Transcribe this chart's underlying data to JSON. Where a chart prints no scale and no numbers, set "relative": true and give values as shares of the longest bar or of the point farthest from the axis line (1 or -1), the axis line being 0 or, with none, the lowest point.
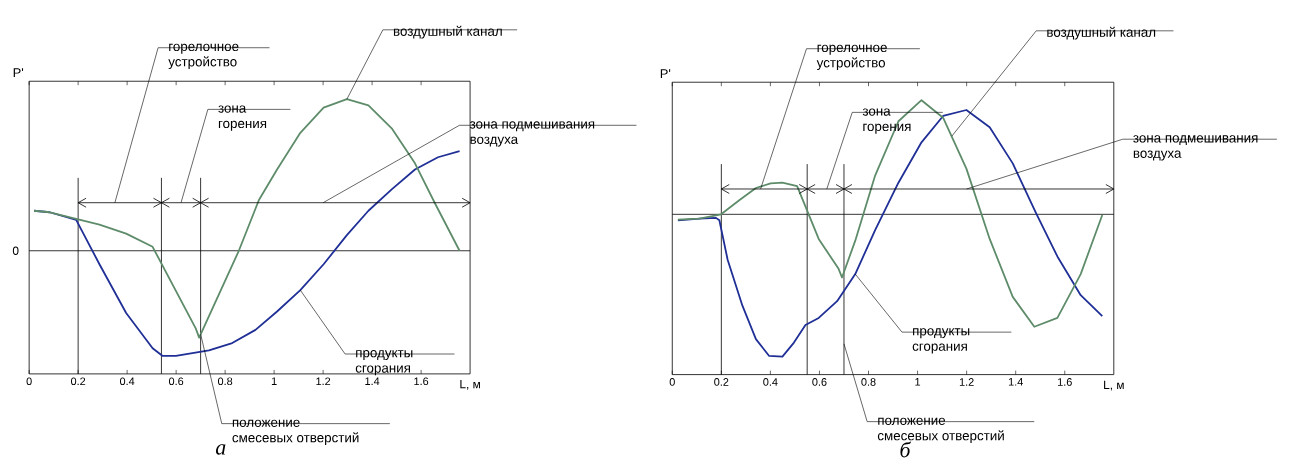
{
  "chart_data": [
    {
      "type": "line",
      "relative": true,
      "title": "а",
      "xlabel": "L, м",
      "ylabel": "P'",
      "xlim": [
        0,
        1.8
      ],
      "xticks": [
        0,
        0.2,
        0.4,
        0.6,
        0.8,
        1,
        1.2,
        1.4,
        1.6
      ],
      "series": [
        {
          "color": "#1f2f96",
          "x": [
            0.02,
            0.084,
            0.192,
            0.287,
            0.396,
            0.504,
            0.545,
            0.599,
            0.734,
            0.829,
            0.924,
            1.012,
            1.107,
            1.202,
            1.297,
            1.385,
            1.48,
            1.575,
            1.669,
            1.757
          ],
          "values": [
            0.264,
            0.254,
            0.204,
            -0.089,
            -0.411,
            -0.643,
            -0.694,
            -0.694,
            -0.657,
            -0.609,
            -0.522,
            -0.401,
            -0.26,
            -0.089,
            0.103,
            0.264,
            0.405,
            0.536,
            0.617,
            0.657
          ]
        },
        {
          "color": "#5e8c6a",
          "x": [
            0.02,
            0.084,
            0.192,
            0.287,
            0.396,
            0.504,
            0.68,
            0.694,
            0.856,
            0.938,
            1.012,
            1.107,
            1.202,
            1.297,
            1.385,
            1.48,
            1.575,
            1.656,
            1.757
          ],
          "values": [
            0.264,
            0.254,
            0.21,
            0.173,
            0.113,
            0.026,
            -0.512,
            -0.573,
            0,
            0.335,
            0.536,
            0.778,
            0.944,
            1.0,
            0.96,
            0.808,
            0.577,
            0.315,
            0
          ]
        },
        {
          "color": "#000000",
          "x": [
            0.2,
            0.54,
            0.7,
            1.8
          ],
          "values": [
            0.317,
            0.317,
            0.317,
            0.317
          ]
        }
      ],
      "ref_lines": [
        {
          "axis": "y",
          "value": 0,
          "label": "0"
        },
        {
          "axis": "x",
          "value": 0.2
        },
        {
          "axis": "x",
          "value": 0.54
        },
        {
          "axis": "x",
          "value": 0.7
        }
      ],
      "annotations": [
        {
          "text": "горелочное устройство",
          "x": 0.35,
          "y": 0.317
        },
        {
          "text": "зона горения",
          "x": 0.62,
          "y": 0.317
        },
        {
          "text": "зона подмешивания воздуха",
          "x": 1.2,
          "y": 0.317
        },
        {
          "text": "воздушный канал",
          "x": 1.297,
          "y": 1.0
        },
        {
          "text": "продукты сгорания",
          "x": 1.107,
          "y": -0.26
        },
        {
          "text": "положение смесевых отверстий",
          "x": 0.7,
          "y": -0.55
        }
      ]
    },
    {
      "type": "line",
      "relative": true,
      "title": "б",
      "xlabel": "L, м",
      "ylabel": "P'",
      "xlim": [
        0,
        1.8
      ],
      "xticks": [
        0,
        0.2,
        0.4,
        0.6,
        0.8,
        1,
        1.2,
        1.4,
        1.6
      ],
      "series": [
        {
          "color": "#1f2f96",
          "x": [
            0.023,
            0.111,
            0.178,
            0.192,
            0.226,
            0.286,
            0.341,
            0.395,
            0.449,
            0.496,
            0.543,
            0.597,
            0.672,
            0.746,
            0.827,
            0.922,
            1.016,
            1.104,
            1.199,
            1.294,
            1.388,
            1.482,
            1.57,
            1.665,
            1.753
          ],
          "values": [
            -0.042,
            -0.03,
            -0.025,
            -0.042,
            -0.321,
            -0.642,
            -0.877,
            -0.995,
            -1.0,
            -0.901,
            -0.778,
            -0.728,
            -0.61,
            -0.42,
            -0.111,
            0.222,
            0.506,
            0.691,
            0.733,
            0.612,
            0.358,
            0.012,
            -0.296,
            -0.568,
            -0.716
          ]
        },
        {
          "color": "#5e8c6a",
          "x": [
            0.023,
            0.111,
            0.199,
            0.273,
            0.341,
            0.401,
            0.449,
            0.509,
            0.597,
            0.678,
            0.692,
            0.746,
            0.827,
            0.922,
            1.016,
            1.104,
            1.199,
            1.294,
            1.388,
            1.476,
            1.57,
            1.665,
            1.753
          ],
          "values": [
            -0.037,
            -0.03,
            0,
            0.099,
            0.185,
            0.217,
            0.222,
            0.198,
            -0.173,
            -0.383,
            -0.444,
            -0.185,
            0.272,
            0.654,
            0.802,
            0.679,
            0.321,
            -0.173,
            -0.58,
            -0.79,
            -0.728,
            -0.42,
            -0.005
          ]
        },
        {
          "color": "#000000",
          "x": [
            0.2,
            0.55,
            0.7,
            1.8
          ],
          "values": [
            0.178,
            0.178,
            0.178,
            0.178
          ]
        }
      ],
      "ref_lines": [
        {
          "axis": "y",
          "value": 0
        },
        {
          "axis": "x",
          "value": 0.2
        },
        {
          "axis": "x",
          "value": 0.55
        },
        {
          "axis": "x",
          "value": 0.7
        }
      ],
      "annotations": [
        {
          "text": "горелочное устройство",
          "x": 0.36,
          "y": 0.178
        },
        {
          "text": "зона горения",
          "x": 0.63,
          "y": 0.178
        },
        {
          "text": "зона подмешивания воздуха",
          "x": 1.2,
          "y": 0.178
        },
        {
          "text": "воздушный канал",
          "x": 1.14,
          "y": 0.55
        },
        {
          "text": "продукты сгорания",
          "x": 0.746,
          "y": -0.42
        },
        {
          "text": "положение смесевых отверстий",
          "x": 0.7,
          "y": -0.91
        }
      ]
    }
  ]
}
